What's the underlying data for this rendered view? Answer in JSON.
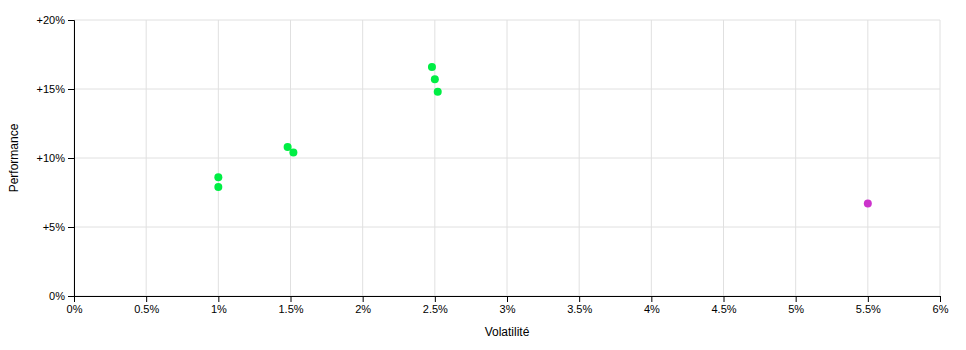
{
  "chart_data": {
    "type": "scatter",
    "xlabel": "Volatilité",
    "ylabel": "Performance",
    "xlim": [
      0.0,
      0.06
    ],
    "ylim": [
      0.0,
      0.2
    ],
    "xticks": [
      {
        "value": 0.0,
        "label": "0%"
      },
      {
        "value": 0.005,
        "label": "0.5%"
      },
      {
        "value": 0.01,
        "label": "1%"
      },
      {
        "value": 0.015,
        "label": "1.5%"
      },
      {
        "value": 0.02,
        "label": "2%"
      },
      {
        "value": 0.025,
        "label": "2.5%"
      },
      {
        "value": 0.03,
        "label": "3%"
      },
      {
        "value": 0.035,
        "label": "3.5%"
      },
      {
        "value": 0.04,
        "label": "4%"
      },
      {
        "value": 0.045,
        "label": "4.5%"
      },
      {
        "value": 0.05,
        "label": "5%"
      },
      {
        "value": 0.055,
        "label": "5.5%"
      },
      {
        "value": 0.06,
        "label": "6%"
      }
    ],
    "yticks": [
      {
        "value": 0.0,
        "label": "0%"
      },
      {
        "value": 0.05,
        "label": "+5%"
      },
      {
        "value": 0.1,
        "label": "+10%"
      },
      {
        "value": 0.15,
        "label": "+15%"
      },
      {
        "value": 0.2,
        "label": "+20%"
      }
    ],
    "grid": true,
    "series": [
      {
        "color": "#00ee44",
        "x": [
          0.01,
          0.01,
          0.0148,
          0.0152,
          0.0248,
          0.025,
          0.0252
        ],
        "values": [
          0.086,
          0.079,
          0.108,
          0.104,
          0.166,
          0.157,
          0.148
        ]
      },
      {
        "color": "#cc33cc",
        "x": [
          0.055
        ],
        "values": [
          0.067
        ]
      }
    ]
  }
}
